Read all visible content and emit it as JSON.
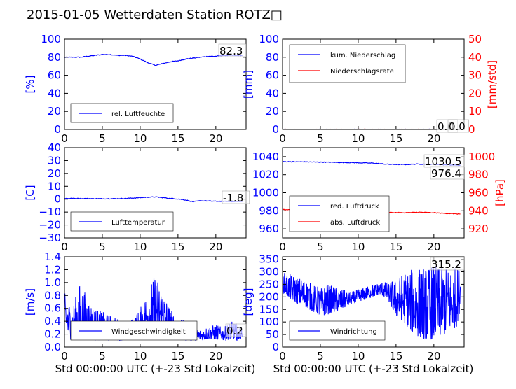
{
  "title": "2015-01-05 Wetterdaten Station ROTZ□",
  "chart_data": [
    {
      "id": "humidity",
      "type": "line",
      "ylabel": "[%]",
      "xlabel": "",
      "xlim": [
        0,
        24
      ],
      "ylim": [
        0,
        100
      ],
      "xticks": [
        "0",
        "5",
        "10",
        "15",
        "20"
      ],
      "yticks": [
        "0",
        "20",
        "40",
        "60",
        "80",
        "100"
      ],
      "legend": "lower-left",
      "annotation": "82.3",
      "series": [
        {
          "name": "rel. Luftfeuchte",
          "color": "#0000ff",
          "x": [
            0,
            1,
            2,
            3,
            4,
            5,
            6,
            7,
            8,
            9,
            10,
            11,
            12,
            13,
            14,
            15,
            16,
            17,
            18,
            19,
            20,
            21,
            22,
            23,
            23.5
          ],
          "y": [
            80,
            80,
            80,
            81,
            82,
            83,
            83,
            82,
            82,
            81,
            78,
            74,
            71,
            73,
            75,
            76,
            78,
            79,
            80,
            81,
            81,
            82,
            82,
            82,
            82
          ]
        }
      ]
    },
    {
      "id": "precip",
      "type": "line",
      "ylabel": "[mm]",
      "y2label": "[mm/std]",
      "xlim": [
        0,
        24
      ],
      "ylim": [
        0,
        100
      ],
      "y2lim": [
        0,
        50
      ],
      "xticks": [
        "0",
        "5",
        "10",
        "15",
        "20"
      ],
      "yticks": [
        "0",
        "20",
        "40",
        "60",
        "80",
        "100"
      ],
      "y2ticks": [
        "0",
        "10",
        "20",
        "30",
        "40",
        "50"
      ],
      "legend": "upper-left",
      "annotation": "0.0",
      "annotation2": "0.0",
      "series": [
        {
          "name": "kum. Niederschlag",
          "color": "#0000ff",
          "x": [
            0,
            23.5
          ],
          "y": [
            0,
            0
          ]
        },
        {
          "name": "Niederschlagsrate",
          "color": "#ff0000",
          "x": [
            0,
            23.5
          ],
          "y": [
            0,
            0
          ]
        }
      ]
    },
    {
      "id": "temperature",
      "type": "line",
      "ylabel": "[C]",
      "xlim": [
        0,
        24
      ],
      "ylim": [
        -30,
        40
      ],
      "xticks": [
        "0",
        "5",
        "10",
        "15",
        "20"
      ],
      "yticks": [
        "−30",
        "−20",
        "−10",
        "0",
        "10",
        "20",
        "30",
        "40"
      ],
      "legend": "lower-left",
      "annotation": "-1.8",
      "series": [
        {
          "name": "Lufttemperatur",
          "color": "#0000ff",
          "x": [
            0,
            2,
            4,
            6,
            8,
            10,
            11,
            12,
            13,
            14,
            15,
            16,
            17,
            18,
            19,
            20,
            22,
            23.5
          ],
          "y": [
            0.6,
            0.6,
            0.4,
            0.4,
            0.6,
            1.2,
            1.6,
            1.8,
            1.2,
            0.6,
            0.2,
            -0.6,
            -2.0,
            -1.2,
            -1.4,
            -1.6,
            -1.8,
            -1.8
          ]
        }
      ]
    },
    {
      "id": "pressure",
      "type": "line",
      "ylabel": "[hPa]",
      "xlim": [
        0,
        24
      ],
      "ylim": [
        950,
        1050
      ],
      "y2lim": [
        910,
        1010
      ],
      "xticks": [
        "0",
        "5",
        "10",
        "15",
        "20"
      ],
      "yticks": [
        "960",
        "980",
        "1000",
        "1020",
        "1040"
      ],
      "y2ticks": [
        "920",
        "940",
        "960",
        "980",
        "1000"
      ],
      "legend": "lower-left",
      "annotation": "1030.5",
      "annotation2": "976.4",
      "series": [
        {
          "name": "red. Luftdruck",
          "color": "#0000ff",
          "x": [
            0,
            3,
            6,
            9,
            12,
            14,
            16,
            18,
            20,
            22,
            23.5
          ],
          "y": [
            1034.5,
            1034.2,
            1033.8,
            1033.4,
            1032.8,
            1031.5,
            1031.2,
            1031.8,
            1031.4,
            1030.8,
            1030.5
          ]
        },
        {
          "name": "abs. Luftdruck",
          "color": "#ff0000",
          "x": [
            0,
            3,
            6,
            9,
            12,
            14,
            16,
            18,
            20,
            22,
            23.5
          ],
          "y": [
            981.2,
            980.9,
            980.6,
            980.2,
            979.5,
            978.3,
            977.8,
            978.4,
            977.8,
            977.0,
            976.4
          ]
        }
      ]
    },
    {
      "id": "wind",
      "type": "line",
      "ylabel": "[m/s]",
      "xlabel": "Std 00:00:00 UTC (+-23 Std Lokalzeit)",
      "xlim": [
        0,
        24
      ],
      "ylim": [
        0,
        1.4
      ],
      "xticks": [
        "0",
        "5",
        "10",
        "15",
        "20"
      ],
      "yticks": [
        "0.0",
        "0.2",
        "0.4",
        "0.6",
        "0.8",
        "1.0",
        "1.2",
        "1.4"
      ],
      "legend": "lower-left",
      "annotation": "0.2",
      "series": [
        {
          "name": "Windgeschwindigkeit",
          "color": "#0000ff",
          "envelope_x": [
            0,
            1,
            2,
            3,
            4,
            5,
            6,
            7,
            8,
            9,
            10,
            11,
            12,
            13,
            14,
            15,
            16,
            17,
            18,
            19,
            20,
            21,
            22,
            23,
            23.5
          ],
          "envelope_hi": [
            0.85,
            0.6,
            1.0,
            0.8,
            0.6,
            0.55,
            0.5,
            0.45,
            0.4,
            0.45,
            0.6,
            0.9,
            1.15,
            0.9,
            0.6,
            0.45,
            0.4,
            0.3,
            0.28,
            0.32,
            0.35,
            0.3,
            0.4,
            0.35,
            0.3
          ],
          "envelope_lo": [
            0.2,
            0.1,
            0.15,
            0.15,
            0.1,
            0.1,
            0.1,
            0.1,
            0.1,
            0.1,
            0.15,
            0.2,
            0.2,
            0.15,
            0.15,
            0.12,
            0.1,
            0.1,
            0.1,
            0.12,
            0.12,
            0.1,
            0.12,
            0.1,
            0.15
          ]
        }
      ]
    },
    {
      "id": "direction",
      "type": "line",
      "ylabel": "[deg]",
      "xlabel": "Std 00:00:00 UTC (+-23 Std Lokalzeit)",
      "xlim": [
        0,
        24
      ],
      "ylim": [
        0,
        360
      ],
      "xticks": [
        "0",
        "5",
        "10",
        "15",
        "20"
      ],
      "yticks": [
        "0",
        "50",
        "100",
        "150",
        "200",
        "250",
        "300",
        "350"
      ],
      "legend": "lower-left",
      "annotation": "315.2",
      "series": [
        {
          "name": "Windrichtung",
          "color": "#0000ff",
          "envelope_x": [
            0,
            1,
            2,
            3,
            4,
            5,
            6,
            7,
            8,
            9,
            10,
            11,
            12,
            13,
            14,
            15,
            16,
            17,
            18,
            19,
            20,
            21,
            22,
            23,
            23.5
          ],
          "envelope_hi": [
            300,
            290,
            280,
            270,
            250,
            240,
            250,
            240,
            230,
            220,
            230,
            240,
            250,
            260,
            260,
            270,
            300,
            310,
            320,
            320,
            330,
            320,
            320,
            320,
            320
          ],
          "envelope_lo": [
            220,
            190,
            170,
            160,
            140,
            120,
            130,
            140,
            150,
            170,
            180,
            190,
            200,
            210,
            180,
            120,
            100,
            60,
            40,
            30,
            30,
            40,
            60,
            80,
            150
          ]
        }
      ]
    }
  ]
}
